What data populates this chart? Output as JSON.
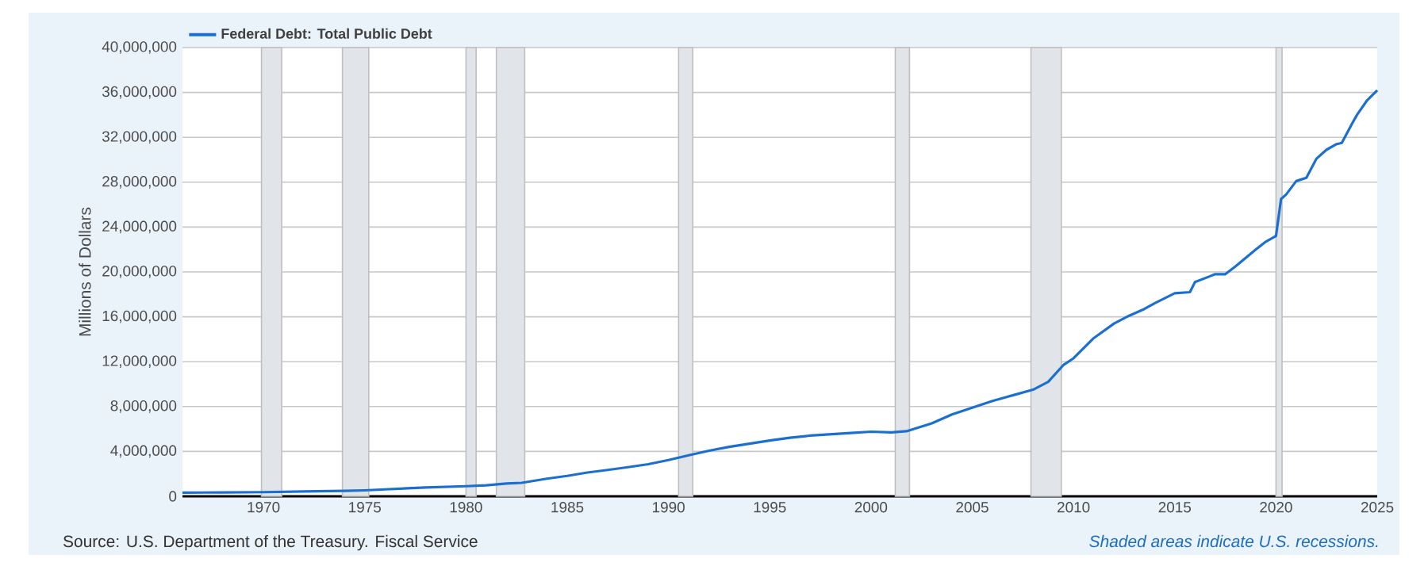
{
  "chart_data": {
    "type": "line",
    "ylabel": "Millions of Dollars",
    "annotations": [
      "Source: U.S. Department of the Treasury. Fiscal Service",
      "Shaded areas indicate U.S. recessions."
    ],
    "series": [
      {
        "name": "Federal Debt: Total Public Debt",
        "color": "#1b6fd1",
        "x": [
          1966,
          1968,
          1970,
          1972,
          1974,
          1975,
          1976,
          1978,
          1980,
          1981,
          1982,
          1982.75,
          1984,
          1985,
          1986,
          1987,
          1988,
          1989,
          1990,
          1991,
          1992,
          1993,
          1994,
          1995,
          1996,
          1997,
          1998,
          1999,
          2000,
          2001,
          2001.75,
          2003,
          2004,
          2005,
          2006,
          2007,
          2008,
          2008.75,
          2009.5,
          2010,
          2011,
          2012,
          2012.75,
          2013.5,
          2014,
          2015,
          2015.75,
          2016,
          2017,
          2017.5,
          2018,
          2019,
          2019.5,
          2020,
          2020.25,
          2020.5,
          2021,
          2021.5,
          2022,
          2022.5,
          2023,
          2023.25,
          2023.75,
          2024,
          2024.5,
          2025
        ],
        "values": [
          320000,
          350000,
          370000,
          430000,
          480000,
          530000,
          620000,
          780000,
          900000,
          980000,
          1140000,
          1200000,
          1570000,
          1820000,
          2120000,
          2350000,
          2600000,
          2860000,
          3230000,
          3660000,
          4060000,
          4410000,
          4690000,
          4970000,
          5220000,
          5410000,
          5530000,
          5650000,
          5760000,
          5700000,
          5800000,
          6500000,
          7300000,
          7900000,
          8500000,
          9000000,
          9500000,
          10200000,
          11700000,
          12300000,
          14100000,
          15400000,
          16100000,
          16700000,
          17200000,
          18100000,
          18200000,
          19100000,
          19800000,
          19800000,
          20500000,
          22000000,
          22700000,
          23200000,
          26500000,
          26900000,
          28100000,
          28400000,
          30100000,
          30900000,
          31400000,
          31500000,
          33200000,
          34000000,
          35300000,
          36200000
        ]
      }
    ],
    "xlim": [
      1966,
      2025
    ],
    "xticks": [
      1970,
      1975,
      1980,
      1985,
      1990,
      1995,
      2000,
      2005,
      2010,
      2015,
      2020,
      2025
    ],
    "ylim": [
      0,
      40000000
    ],
    "yticks": [
      0,
      {
        "value": 4000000,
        "label": "4,000,000"
      },
      {
        "value": 8000000,
        "label": "8,000,000"
      },
      {
        "value": 12000000,
        "label": "12,000,000"
      },
      {
        "value": 16000000,
        "label": "16,000,000"
      },
      {
        "value": 20000000,
        "label": "20,000,000"
      },
      {
        "value": 24000000,
        "label": "24,000,000"
      },
      {
        "value": 28000000,
        "label": "28,000,000"
      },
      {
        "value": 32000000,
        "label": "32,000,000"
      },
      {
        "value": 36000000,
        "label": "36,000,000"
      },
      {
        "value": 40000000,
        "label": "40,000,000"
      }
    ],
    "bands": [
      {
        "axis": "x",
        "from": 1969.9,
        "to": 1970.9,
        "color": "#e1e5ea"
      },
      {
        "axis": "x",
        "from": 1973.9,
        "to": 1975.2,
        "color": "#e1e5ea"
      },
      {
        "axis": "x",
        "from": 1980.0,
        "to": 1980.5,
        "color": "#e1e5ea"
      },
      {
        "axis": "x",
        "from": 1981.5,
        "to": 1982.9,
        "color": "#e1e5ea"
      },
      {
        "axis": "x",
        "from": 1990.5,
        "to": 1991.2,
        "color": "#e1e5ea"
      },
      {
        "axis": "x",
        "from": 2001.2,
        "to": 2001.9,
        "color": "#e1e5ea"
      },
      {
        "axis": "x",
        "from": 2007.9,
        "to": 2009.4,
        "color": "#e1e5ea"
      },
      {
        "axis": "x",
        "from": 2020.0,
        "to": 2020.3,
        "color": "#e1e5ea"
      }
    ],
    "grid": "y",
    "legend": "top left",
    "marker": "none",
    "line_style": "solid"
  }
}
